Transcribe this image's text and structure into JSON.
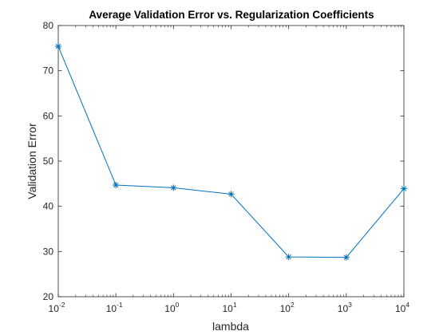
{
  "chart_data": {
    "type": "line",
    "title": "Average Validation Error vs. Regularization Coefficients",
    "xlabel": "lambda",
    "ylabel": "Validation Error",
    "x_scale": "log",
    "xlim": [
      0.01,
      10000
    ],
    "ylim": [
      20,
      80
    ],
    "x_ticks": [
      {
        "value": 0.01,
        "base": "10",
        "exp": "-2"
      },
      {
        "value": 0.1,
        "base": "10",
        "exp": "-1"
      },
      {
        "value": 1,
        "base": "10",
        "exp": "0"
      },
      {
        "value": 10,
        "base": "10",
        "exp": "1"
      },
      {
        "value": 100,
        "base": "10",
        "exp": "2"
      },
      {
        "value": 1000,
        "base": "10",
        "exp": "3"
      },
      {
        "value": 10000,
        "base": "10",
        "exp": "4"
      }
    ],
    "y_ticks": [
      "20",
      "30",
      "40",
      "50",
      "60",
      "70",
      "80"
    ],
    "grid": false,
    "marker": "asterisk",
    "series_color": "#0072bd",
    "axis_color": "#262626",
    "series": [
      {
        "x": [
          0.01,
          0.1,
          1,
          10,
          100,
          1000,
          10000
        ],
        "values": [
          75.4,
          44.7,
          44.1,
          42.7,
          28.8,
          28.7,
          43.9
        ]
      }
    ]
  }
}
